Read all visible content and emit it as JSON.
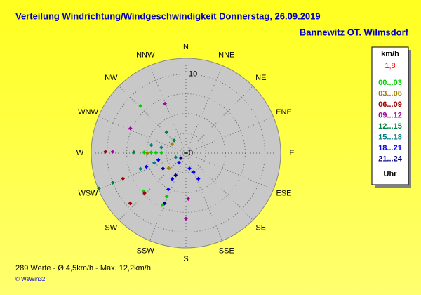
{
  "chart_data": {
    "type": "polar_scatter",
    "title": "Verteilung Windrichtung/Windgeschwindigkeit  Donnerstag, 26.09.2019",
    "subtitle": "Bannewitz OT. Wilmsdorf",
    "directions": [
      "N",
      "NNE",
      "NE",
      "ENE",
      "E",
      "ESE",
      "SE",
      "SSE",
      "S",
      "SSW",
      "SW",
      "WSW",
      "W",
      "WNW",
      "NW",
      "NNW"
    ],
    "rlim": [
      0,
      12
    ],
    "rticks": [
      0,
      10
    ],
    "grid_step": 2.5,
    "grid": true,
    "legend_title": "km/h",
    "current_speed": "1,8",
    "legend_footer": "Uhr",
    "series": [
      {
        "name": "00...03",
        "color": "#00d000",
        "x": [
          271,
          271,
          271,
          271,
          316,
          204,
          204,
          228
        ],
        "values": [
          3.1,
          3.8,
          4.4,
          5.3,
          8.3,
          7.2,
          6.0,
          7.2
        ]
      },
      {
        "name": "03...06",
        "color": "#a08000",
        "x": [
          270,
          303,
          229
        ],
        "values": [
          4.9,
          2.1,
          2.9
        ]
      },
      {
        "name": "06...09",
        "color": "#a00000",
        "x": [
          271,
          248,
          226,
          228
        ],
        "values": [
          10.2,
          8.6,
          7.3,
          9.5
        ]
      },
      {
        "name": "09...12",
        "color": "#a000a0",
        "x": [
          337,
          294,
          271,
          180,
          177
        ],
        "values": [
          6.8,
          7.7,
          9.3,
          8.3,
          5.8
        ]
      },
      {
        "name": "12...15",
        "color": "#008040",
        "x": [
          248,
          248,
          271,
          317,
          317
        ],
        "values": [
          11.9,
          10.0,
          6.6,
          3.6,
          2.2
        ]
      },
      {
        "name": "15...18",
        "color": "#008080",
        "x": [
          251,
          253,
          248,
          283,
          283
        ],
        "values": [
          6.1,
          4.2,
          1.4,
          4.5,
          3.2
        ]
      },
      {
        "name": "18...21",
        "color": "#0000ff",
        "x": [
          206,
          208,
          167,
          154,
          158,
          251,
          256,
          216
        ],
        "values": [
          5.1,
          3.7,
          2.0,
          3.6,
          2.6,
          5.3,
          3.6,
          1.5
        ]
      },
      {
        "name": "21...24",
        "color": "#000080",
        "x": [
          203,
          205,
          236,
          225
        ],
        "values": [
          6.9,
          3.1,
          3.5,
          0.9
        ]
      }
    ],
    "footer": "289 Werte  -  Ø 4,5km/h  -  Max. 12,2km/h",
    "copyright": "© WsWin32"
  }
}
